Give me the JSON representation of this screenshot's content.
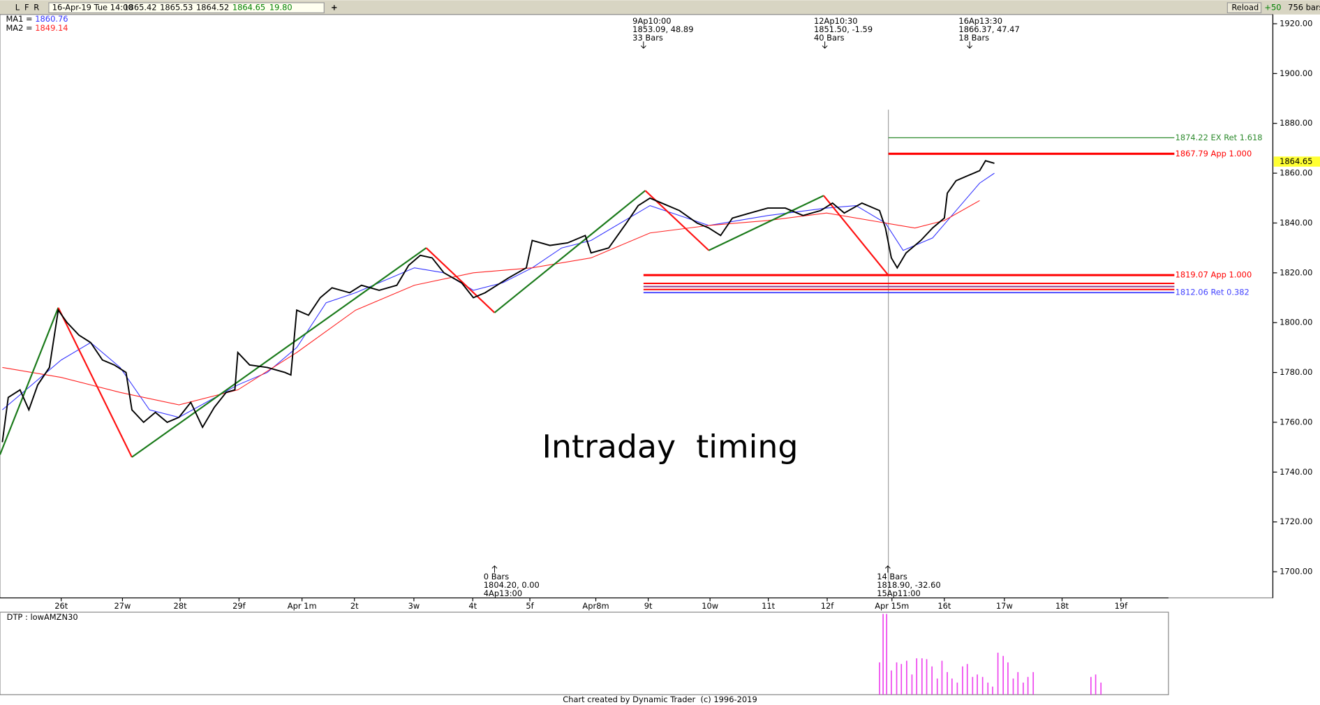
{
  "toolbar": {
    "buttons": [
      "L",
      "F",
      "R"
    ],
    "datetime": "16-Apr-19 Tue 14:00",
    "quote": [
      "1865.42",
      "1865.53",
      "1864.52",
      "1864.65",
      "19.80"
    ],
    "add": "+",
    "reload": "Reload",
    "offset": "+50",
    "bars": "756 bars"
  },
  "chart_data": {
    "type": "line",
    "title": "Intraday  timing",
    "xlim": [
      -1.04,
      20.58
    ],
    "ylim": [
      1689.5,
      1923.7
    ],
    "xticks": [
      {
        "value": 0,
        "label": "26t"
      },
      {
        "value": 1.04,
        "label": "27w"
      },
      {
        "value": 2.02,
        "label": "28t"
      },
      {
        "value": 3.02,
        "label": "29f"
      },
      {
        "value": 4.09,
        "label": "Apr 1m"
      },
      {
        "value": 4.98,
        "label": "2t"
      },
      {
        "value": 5.99,
        "label": "3w"
      },
      {
        "value": 6.99,
        "label": "4t"
      },
      {
        "value": 7.96,
        "label": "5f"
      },
      {
        "value": 9.08,
        "label": "Apr8m"
      },
      {
        "value": 9.97,
        "label": "9t"
      },
      {
        "value": 11.02,
        "label": "10w"
      },
      {
        "value": 12.01,
        "label": "11t"
      },
      {
        "value": 13.01,
        "label": "12f"
      },
      {
        "value": 14.11,
        "label": "Apr 15m"
      },
      {
        "value": 15.0,
        "label": "16t"
      },
      {
        "value": 16.02,
        "label": "17w"
      },
      {
        "value": 17.0,
        "label": "18t"
      },
      {
        "value": 18.0,
        "label": "19f"
      }
    ],
    "yticks": [
      {
        "value": 1700,
        "label": "1700.00"
      },
      {
        "value": 1720,
        "label": "1720.00"
      },
      {
        "value": 1740,
        "label": "1740.00"
      },
      {
        "value": 1760,
        "label": "1760.00"
      },
      {
        "value": 1780,
        "label": "1780.00"
      },
      {
        "value": 1800,
        "label": "1800.00"
      },
      {
        "value": 1820,
        "label": "1820.00"
      },
      {
        "value": 1840,
        "label": "1840.00"
      },
      {
        "value": 1860,
        "label": "1860.00"
      },
      {
        "value": 1880,
        "label": "1880.00"
      },
      {
        "value": 1900,
        "label": "1900.00"
      },
      {
        "value": 1920,
        "label": "1920.00"
      }
    ],
    "last_price": {
      "value": 1864.65,
      "label": "1864.65",
      "color": "#ffff33"
    },
    "price": {
      "color": "#000000",
      "x": [
        -1.0,
        -0.9,
        -0.7,
        -0.55,
        -0.4,
        -0.2,
        -0.05,
        0.1,
        0.3,
        0.5,
        0.7,
        0.9,
        1.1,
        1.2,
        1.4,
        1.6,
        1.8,
        2.0,
        2.2,
        2.4,
        2.6,
        2.8,
        2.95,
        3.0,
        3.2,
        3.5,
        3.8,
        3.9,
        4.0,
        4.2,
        4.4,
        4.6,
        4.9,
        5.1,
        5.4,
        5.7,
        5.9,
        6.1,
        6.3,
        6.5,
        6.8,
        7.0,
        7.2,
        7.4,
        7.6,
        7.9,
        8.0,
        8.3,
        8.6,
        8.9,
        9.0,
        9.3,
        9.6,
        9.8,
        10.0,
        10.2,
        10.5,
        10.8,
        11.0,
        11.2,
        11.4,
        11.7,
        12.0,
        12.3,
        12.6,
        12.9,
        13.1,
        13.3,
        13.6,
        13.9,
        14.0,
        14.1,
        14.2,
        14.35,
        14.6,
        14.8,
        15.0,
        15.05,
        15.2,
        15.4,
        15.6,
        15.7,
        15.85
      ],
      "values": [
        1752,
        1770,
        1773,
        1765,
        1775,
        1782,
        1805,
        1800,
        1795,
        1792,
        1785,
        1783,
        1780,
        1765,
        1760,
        1764,
        1760,
        1762,
        1768,
        1758,
        1766,
        1772,
        1773,
        1788,
        1783,
        1782,
        1780,
        1779,
        1805,
        1803,
        1810,
        1814,
        1812,
        1815,
        1813,
        1815,
        1823,
        1827,
        1826,
        1820,
        1816,
        1810,
        1812,
        1815,
        1818,
        1822,
        1833,
        1831,
        1832,
        1835,
        1828,
        1830,
        1840,
        1847,
        1850,
        1848,
        1845,
        1840,
        1838,
        1835,
        1842,
        1844,
        1846,
        1846,
        1843,
        1845,
        1848,
        1844,
        1848,
        1845,
        1838,
        1826,
        1822,
        1828,
        1833,
        1838,
        1842,
        1852,
        1857,
        1859,
        1861,
        1865,
        1864
      ]
    },
    "legend_separator": "=",
    "series": [
      {
        "name": "MA1",
        "value_label": "1860.76",
        "color": "#3333ff",
        "x": [
          -1,
          0,
          0.5,
          1,
          1.5,
          2,
          3,
          3.5,
          4,
          4.5,
          5,
          6,
          6.5,
          7,
          7.5,
          8,
          8.5,
          9,
          10,
          10.5,
          11,
          12,
          13,
          13.5,
          14,
          14.3,
          14.8,
          15.2,
          15.6,
          15.85
        ],
        "values": [
          1765,
          1785,
          1792,
          1782,
          1765,
          1762,
          1775,
          1780,
          1790,
          1808,
          1812,
          1822,
          1820,
          1813,
          1816,
          1822,
          1830,
          1833,
          1847,
          1843,
          1839,
          1843,
          1846,
          1847,
          1840,
          1829,
          1834,
          1845,
          1856,
          1860
        ]
      },
      {
        "name": "MA2",
        "value_label": "1849.14",
        "color": "#ff2222",
        "x": [
          -1,
          0,
          1,
          2,
          3,
          4,
          5,
          6,
          7,
          8,
          9,
          10,
          11,
          12,
          13,
          14,
          14.5,
          15,
          15.6
        ],
        "values": [
          1782,
          1778,
          1772,
          1767,
          1773,
          1788,
          1805,
          1815,
          1820,
          1822,
          1826,
          1836,
          1839,
          1841,
          1844,
          1840,
          1838,
          1841,
          1849
        ]
      }
    ],
    "zigzag": {
      "up_color": "#1a7a1a",
      "down_color": "#ff1111",
      "x": [
        -1.04,
        -0.05,
        1.2,
        6.2,
        7.36,
        9.92,
        11.0,
        12.95,
        14.05
      ],
      "values": [
        1747,
        1806,
        1746,
        1830,
        1804,
        1853,
        1829,
        1851,
        1819
      ]
    },
    "cursor_x": 14.05,
    "levels": [
      {
        "value": 1874.22,
        "label": "1874.22 EX Ret 1.618",
        "color": "#2e8b2e",
        "from": 14.05
      },
      {
        "value": 1867.79,
        "label": "1867.79 App 1.000",
        "color": "#ff0000",
        "from": 14.05
      },
      {
        "value": 1819.07,
        "label": "1819.07 App 1.000",
        "color": "#ff0000",
        "from": 9.89
      },
      {
        "value": 1815.75,
        "label": null,
        "color": "#ff0000",
        "from": 9.89
      },
      {
        "value": 1814.5,
        "label": null,
        "color": "#8b3a8b",
        "from": 9.89
      },
      {
        "value": 1813.3,
        "label": null,
        "color": "#ff0000",
        "from": 9.89
      },
      {
        "value": 1812.06,
        "label": "1812.06 Ret 0.382",
        "color": "#4444ff",
        "from": 9.89
      }
    ],
    "annotations": [
      {
        "x": 9.89,
        "side": "top",
        "lines": [
          "9Ap10:00",
          "1853.09, 48.89",
          "33 Bars"
        ]
      },
      {
        "x": 12.97,
        "side": "top",
        "lines": [
          "12Ap10:30",
          "1851.50, -1.59",
          "40 Bars"
        ]
      },
      {
        "x": 15.43,
        "side": "top",
        "lines": [
          "16Ap13:30",
          "1866.37, 47.47",
          "18 Bars"
        ]
      },
      {
        "x": 7.36,
        "side": "bottom",
        "lines": [
          "0 Bars",
          "1804.20, 0.00",
          "4Ap13:00"
        ]
      },
      {
        "x": 14.04,
        "side": "bottom",
        "lines": [
          "14 Bars",
          "1818.90, -32.60",
          "15Ap11:00"
        ]
      }
    ],
    "indicator": {
      "title": "DTP : lowAMZN30",
      "color": "#ee44ee",
      "ylim": [
        0,
        100
      ],
      "x": [
        13.9,
        13.96,
        14.02,
        14.1,
        14.19,
        14.27,
        14.36,
        14.45,
        14.53,
        14.62,
        14.7,
        14.79,
        14.88,
        14.96,
        15.05,
        15.13,
        15.22,
        15.31,
        15.39,
        15.48,
        15.56,
        15.65,
        15.74,
        15.82,
        15.91,
        16.0,
        16.08,
        16.17,
        16.25,
        16.34,
        16.42,
        16.51,
        17.49,
        17.57,
        17.66
      ],
      "values": [
        40,
        100,
        100,
        30,
        40,
        38,
        42,
        25,
        45,
        45,
        44,
        35,
        20,
        42,
        28,
        20,
        15,
        35,
        38,
        22,
        25,
        22,
        15,
        10,
        52,
        48,
        40,
        20,
        28,
        15,
        22,
        28,
        22,
        25,
        15
      ]
    }
  },
  "footer": "Chart created by Dynamic Trader  (c) 1996-2019"
}
